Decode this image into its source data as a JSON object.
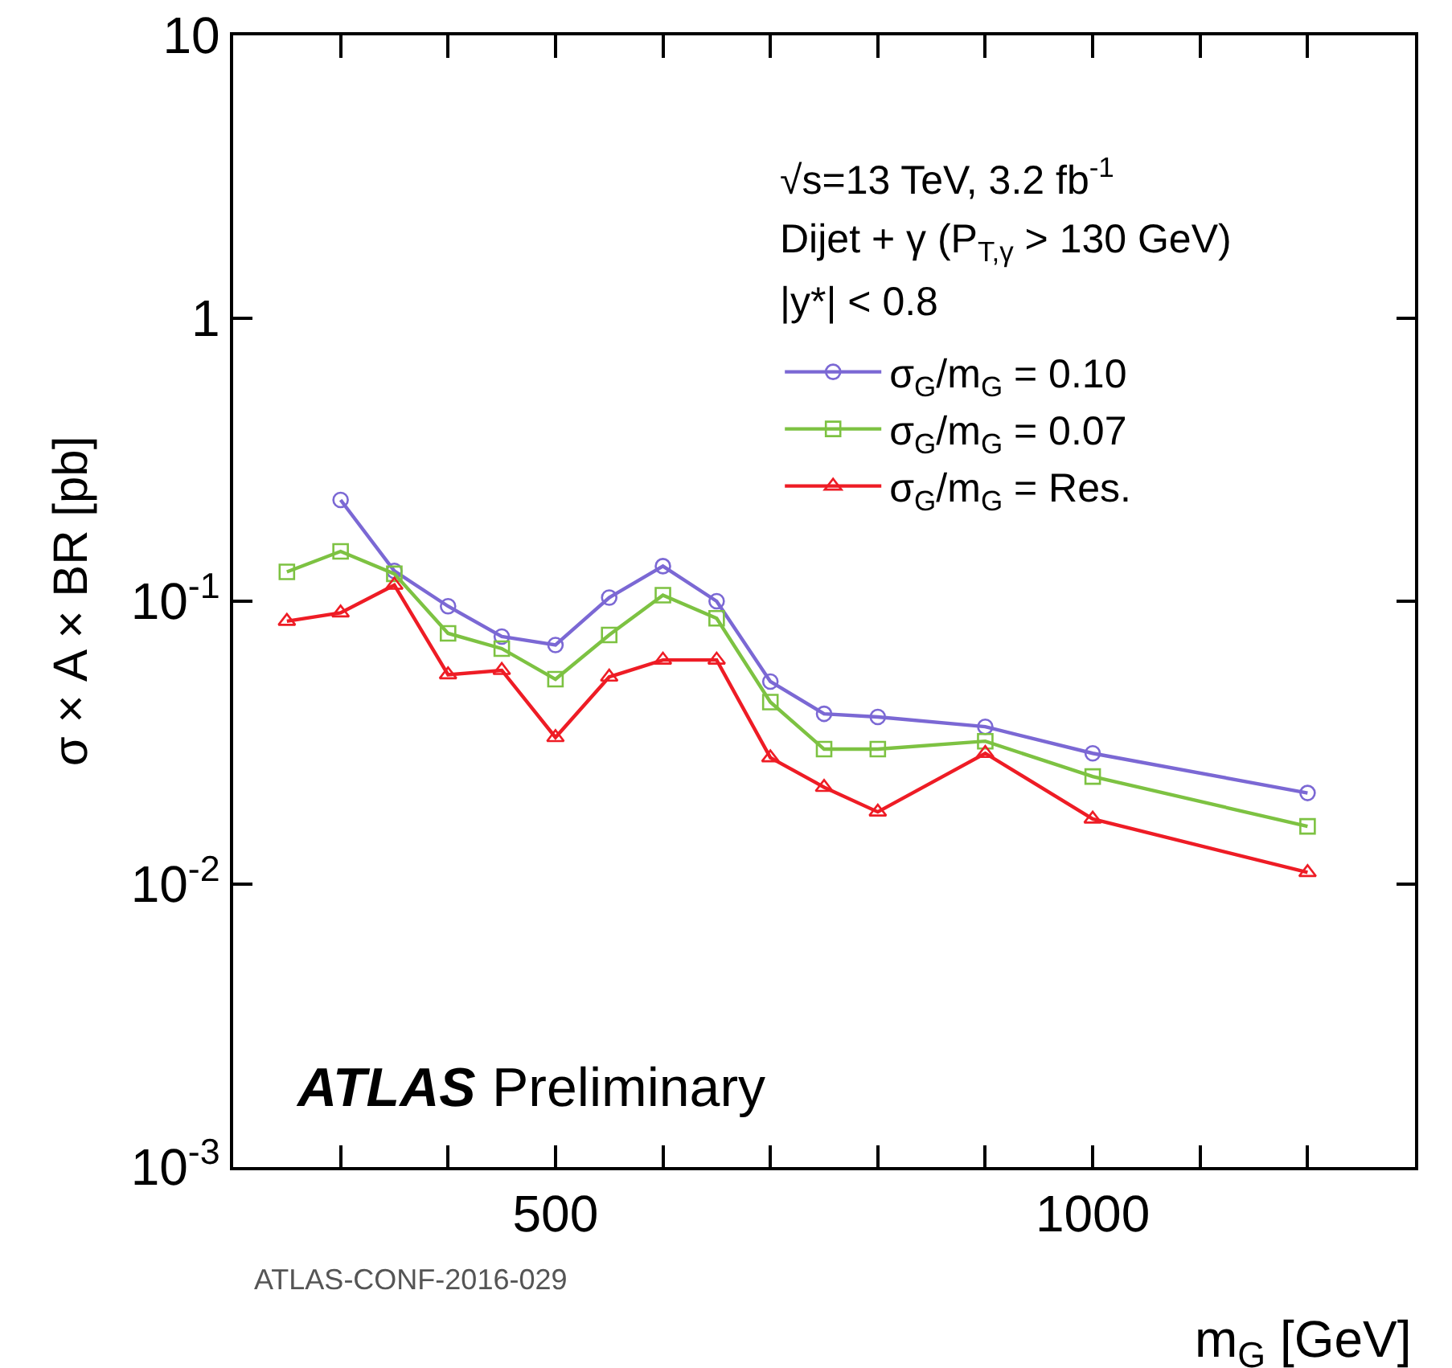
{
  "chart_data": {
    "type": "line",
    "xlabel": "m$_{G}$ [GeV]",
    "ylabel": "σ × A × BR [pb]",
    "x": [
      250,
      300,
      350,
      400,
      450,
      500,
      550,
      600,
      650,
      700,
      750,
      800,
      900,
      1000,
      1200
    ],
    "series": [
      {
        "name": "σ$_{G}$/m$_{G}$ = 0.10",
        "color": "#7b68d4",
        "marker": "circle",
        "values": [
          null,
          0.228,
          0.128,
          0.096,
          0.075,
          0.07,
          0.103,
          0.133,
          0.1,
          0.052,
          0.04,
          0.039,
          0.036,
          0.029,
          0.021
        ]
      },
      {
        "name": "σ$_{G}$/m$_{G}$ = 0.07",
        "color": "#7dc242",
        "marker": "square",
        "values": [
          0.127,
          0.15,
          0.125,
          0.077,
          0.068,
          0.053,
          0.076,
          0.105,
          0.087,
          0.044,
          0.03,
          0.03,
          0.032,
          0.024,
          0.016
        ]
      },
      {
        "name": "σ$_{G}$/m$_{G}$ = Res.",
        "color": "#ee1c25",
        "marker": "triangle",
        "values": [
          0.085,
          0.091,
          0.114,
          0.055,
          0.057,
          0.033,
          0.054,
          0.062,
          0.062,
          0.028,
          0.022,
          0.018,
          0.029,
          0.017,
          0.011
        ]
      }
    ],
    "xlim": [
      200,
      1300
    ],
    "xticks": [
      {
        "value": 200,
        "label": null
      },
      {
        "value": 300,
        "label": null
      },
      {
        "value": 400,
        "label": null
      },
      500,
      {
        "value": 600,
        "label": null
      },
      {
        "value": 700,
        "label": null
      },
      {
        "value": 800,
        "label": null
      },
      {
        "value": 900,
        "label": null
      },
      1000,
      {
        "value": 1100,
        "label": null
      },
      {
        "value": 1200,
        "label": null
      },
      {
        "value": 1300,
        "label": null
      }
    ],
    "ylim": [
      0.001,
      10
    ],
    "yticks": [
      {
        "value": 0.001,
        "label": "10$^{-3}$"
      },
      {
        "value": 0.01,
        "label": "10$^{-2}$"
      },
      {
        "value": 0.1,
        "label": "10$^{-1}$"
      },
      1,
      10
    ],
    "log": "y",
    "grid": false,
    "legend": "top right",
    "line_style": "solid",
    "annotations": [
      "√s=13 TeV, 3.2 fb$^{-1}$",
      "Dijet + γ (P$_{T,γ}$ > 130 GeV)",
      "|y*| < 0.8",
      "ATLAS",
      "Preliminary",
      "ATLAS-CONF-2016-029"
    ]
  }
}
